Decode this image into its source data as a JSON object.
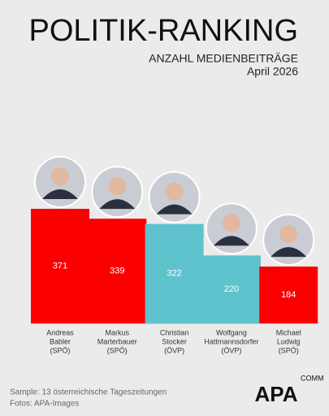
{
  "chart_data": {
    "type": "bar",
    "title": "POLITIK-RANKING",
    "subtitle": "ANZAHL MEDIENBEITRÄGE",
    "date": "April 2026",
    "categories": [
      [
        "Andreas",
        "Babler",
        "(SPÖ)"
      ],
      [
        "Markus",
        "Marterbauer",
        "(SPÖ)"
      ],
      [
        "Christian",
        "Stocker",
        "(ÖVP)"
      ],
      [
        "Wolfgang",
        "Hattmannsdorfer",
        "(ÖVP)"
      ],
      [
        "Michael",
        "Ludwig",
        "(SPÖ)"
      ]
    ],
    "values": [
      371,
      339,
      322,
      220,
      184
    ],
    "colors": [
      "#fb0000",
      "#fb0000",
      "#5ec3cc",
      "#5ec3cc",
      "#fb0000"
    ],
    "footnotes": [
      "Sample: 13 österreichische Tageszeitungen",
      "Fotos: APA-Images"
    ],
    "logo": {
      "main": "APA",
      "sub": "COMM"
    }
  }
}
